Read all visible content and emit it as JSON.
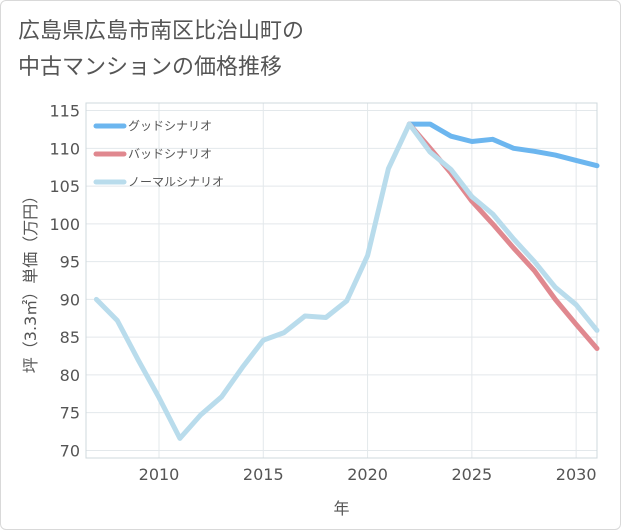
{
  "chart_data": {
    "type": "line",
    "title": "広島県広島市南区比治山町の\n中古マンションの価格推移",
    "xlabel": "年",
    "ylabel": "坪（3.3㎡）単価（万円）",
    "xlim": [
      2006.5,
      2031
    ],
    "ylim": [
      69,
      116
    ],
    "xticks": [
      2010,
      2015,
      2020,
      2025,
      2030
    ],
    "yticks": [
      70,
      75,
      80,
      85,
      90,
      95,
      100,
      105,
      110,
      115
    ],
    "grid": true,
    "legend_position": "top-left",
    "series": [
      {
        "name": "グッドシナリオ",
        "color": "#6cb6ef",
        "x": [
          2022,
          2023,
          2024,
          2025,
          2026,
          2027,
          2028,
          2029,
          2030,
          2031
        ],
        "y": [
          113.2,
          113.2,
          111.6,
          110.9,
          111.2,
          110.0,
          109.6,
          109.1,
          108.4,
          107.7
        ]
      },
      {
        "name": "バッドシナリオ",
        "color": "#e0888f",
        "x": [
          2022,
          2023,
          2024,
          2025,
          2026,
          2027,
          2028,
          2029,
          2030,
          2031
        ],
        "y": [
          113.2,
          110.0,
          106.7,
          103.0,
          100.0,
          96.8,
          93.8,
          90.0,
          86.7,
          83.5
        ]
      },
      {
        "name": "ノーマルシナリオ",
        "color": "#b9dcec",
        "x": [
          2007,
          2008,
          2009,
          2010,
          2011,
          2012,
          2013,
          2014,
          2015,
          2016,
          2017,
          2018,
          2019,
          2020,
          2021,
          2022,
          2023,
          2024,
          2025,
          2026,
          2027,
          2028,
          2029,
          2030,
          2031
        ],
        "y": [
          90.0,
          87.2,
          82.0,
          77.0,
          71.6,
          74.7,
          77.1,
          81.0,
          84.6,
          85.6,
          87.8,
          87.6,
          89.8,
          95.8,
          107.3,
          113.2,
          109.5,
          107.2,
          103.6,
          101.3,
          98.0,
          95.0,
          91.6,
          89.3,
          85.9
        ]
      }
    ]
  }
}
